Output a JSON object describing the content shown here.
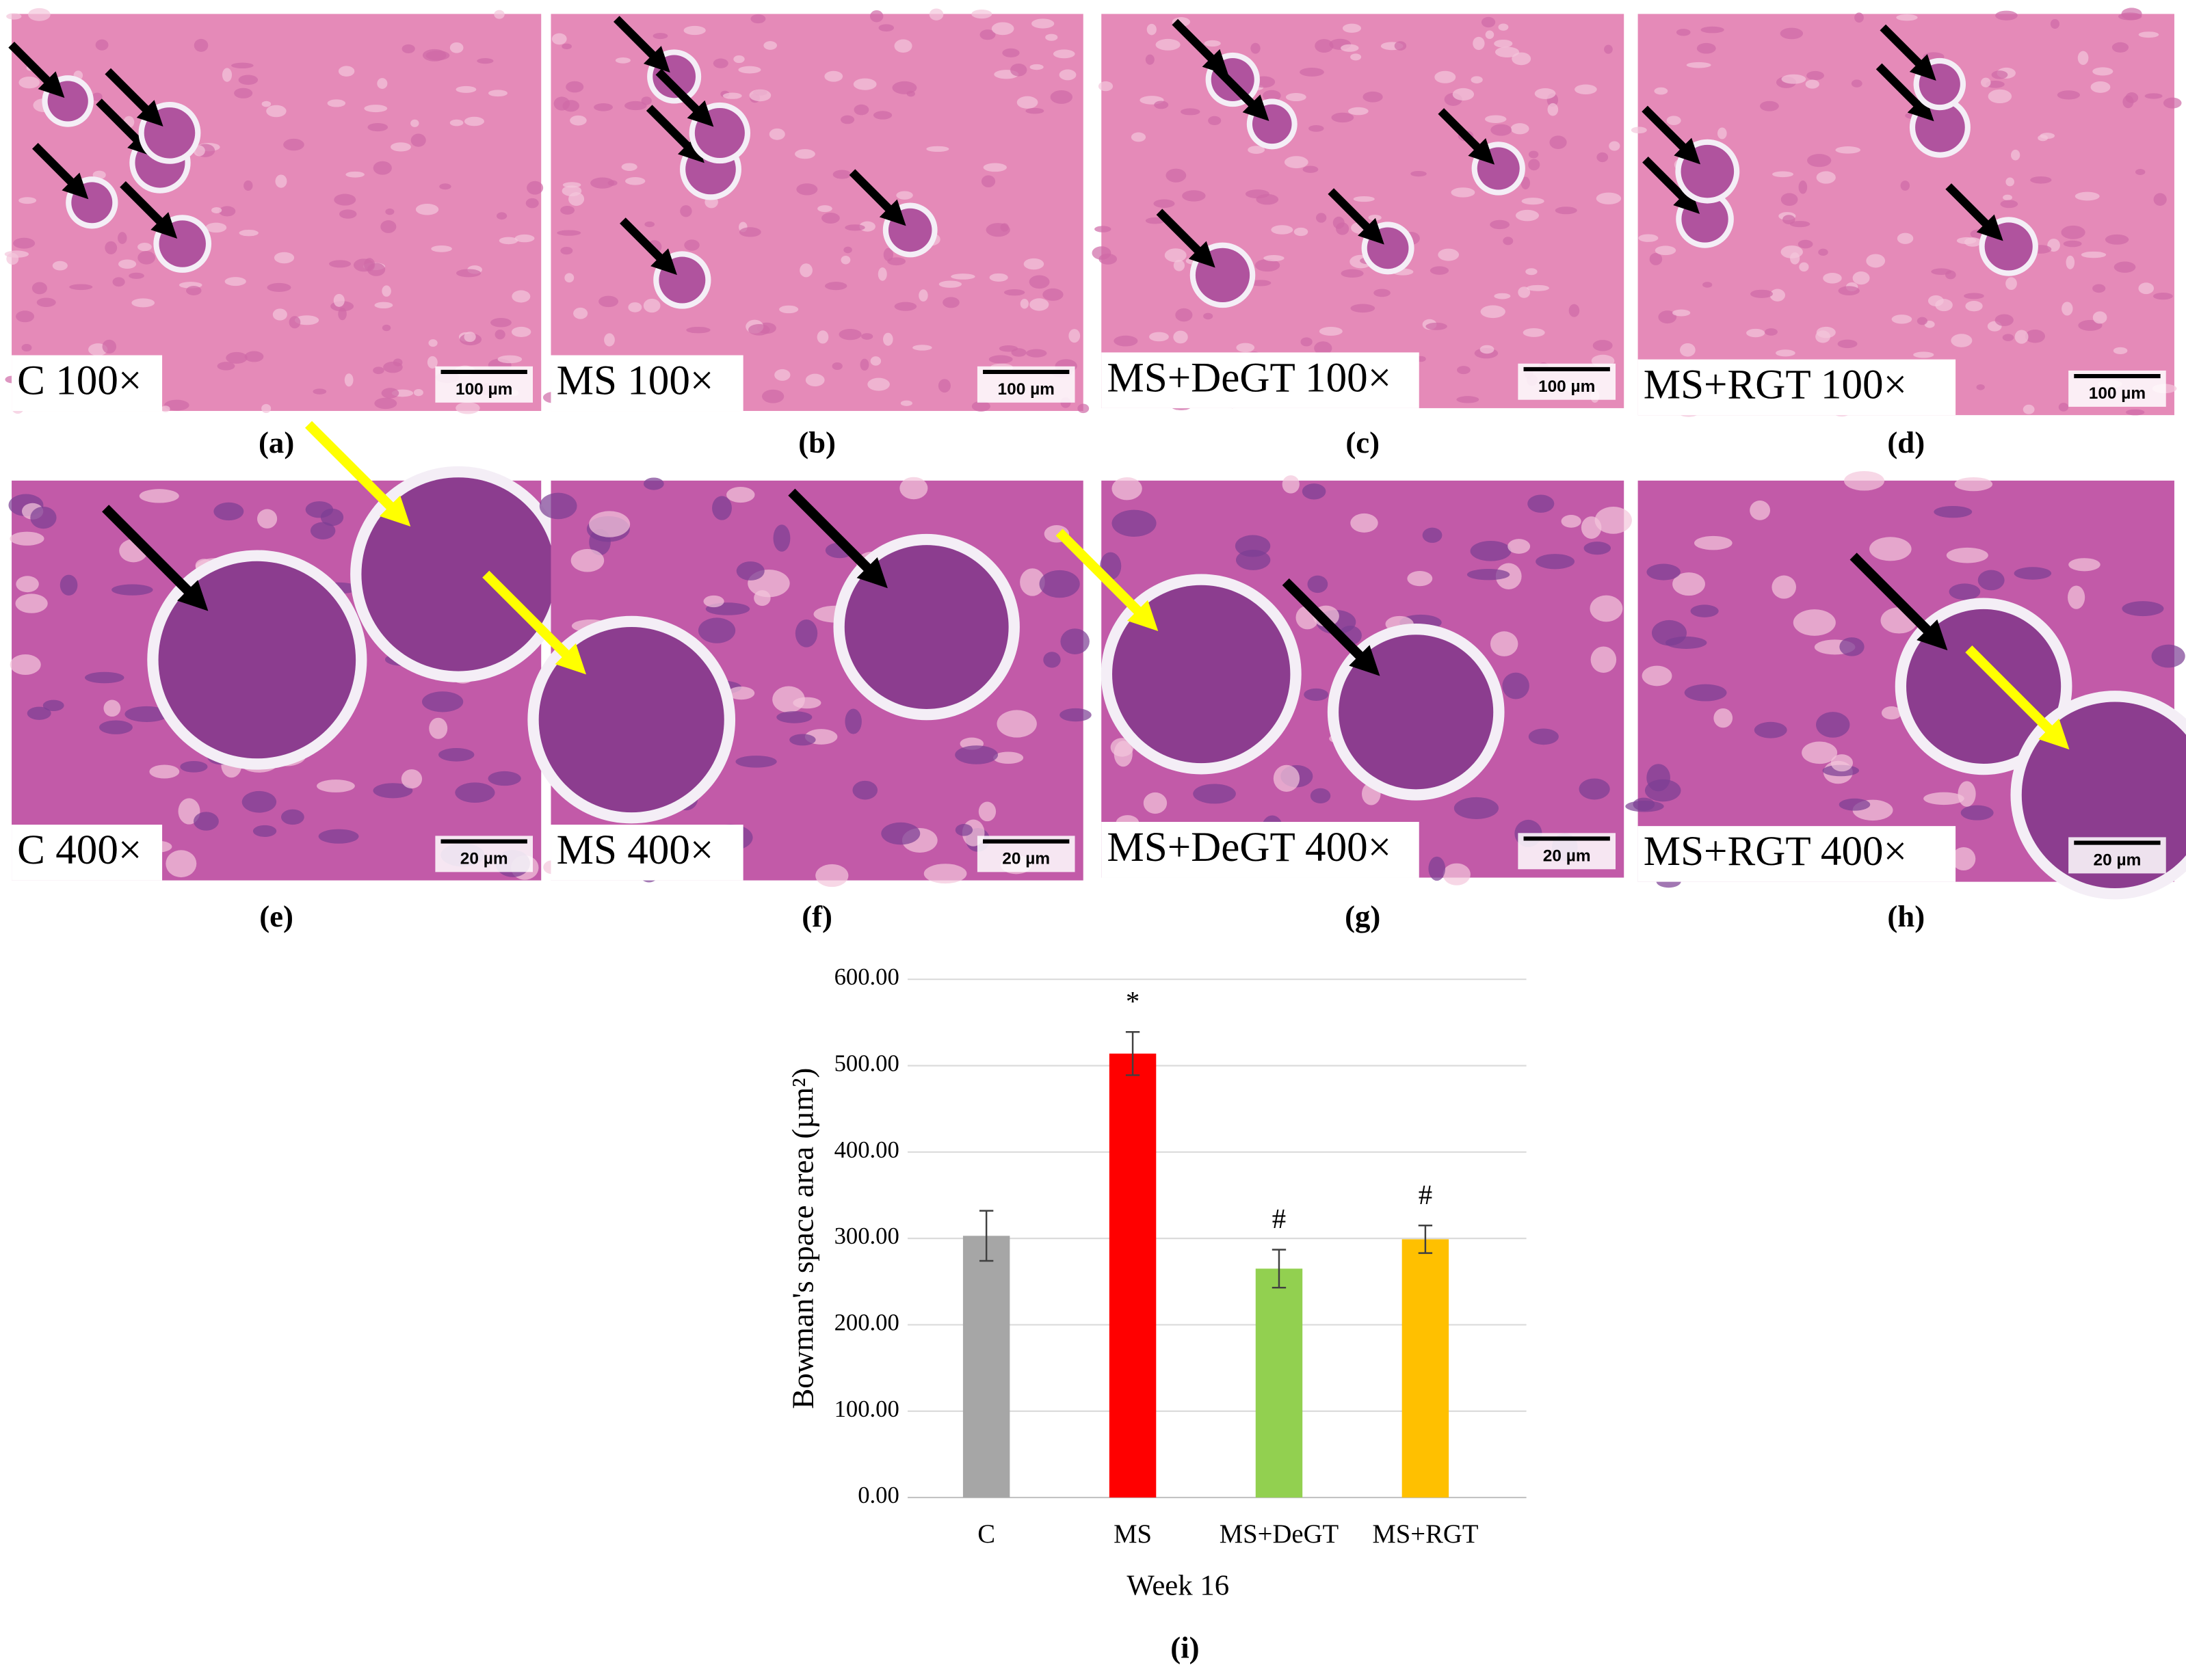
{
  "panels": [
    {
      "caption": "C 100×",
      "scale": "100 µm",
      "letter": "(a)"
    },
    {
      "caption": "MS 100×",
      "scale": "100 µm",
      "letter": "(b)"
    },
    {
      "caption": "MS+DeGT 100×",
      "scale": "100 µm",
      "letter": "(c)"
    },
    {
      "caption": "MS+RGT 100×",
      "scale": "100 µm",
      "letter": "(d)"
    },
    {
      "caption": "C 400×",
      "scale": "20 µm",
      "letter": "(e)"
    },
    {
      "caption": "MS 400×",
      "scale": "20 µm",
      "letter": "(f)"
    },
    {
      "caption": "MS+DeGT 400×",
      "scale": "20 µm",
      "letter": "(g)"
    },
    {
      "caption": "MS+RGT 400×",
      "scale": "20 µm",
      "letter": "(h)"
    }
  ],
  "chart_data": {
    "type": "bar",
    "panel_label": "(i)",
    "x_label": "Week 16",
    "y_label": "Bowman's space area (µm²)",
    "categories": [
      "C",
      "MS",
      "MS+DeGT",
      "MS+RGT"
    ],
    "values": [
      303,
      514,
      265,
      299
    ],
    "errors": [
      29,
      25,
      22,
      16
    ],
    "markers": [
      null,
      "*",
      "#",
      "#"
    ],
    "colors": [
      "#a6a6a6",
      "#ff0000",
      "#92d050",
      "#ffc000"
    ],
    "ylim": [
      0,
      600
    ],
    "yticks": [
      {
        "value": 0,
        "label": "0.00"
      },
      {
        "value": 100,
        "label": "100.00"
      },
      {
        "value": 200,
        "label": "200.00"
      },
      {
        "value": 300,
        "label": "300.00"
      },
      {
        "value": 400,
        "label": "400.00"
      },
      {
        "value": 500,
        "label": "500.00"
      },
      {
        "value": 600,
        "label": "600.00"
      }
    ],
    "grid": true
  }
}
